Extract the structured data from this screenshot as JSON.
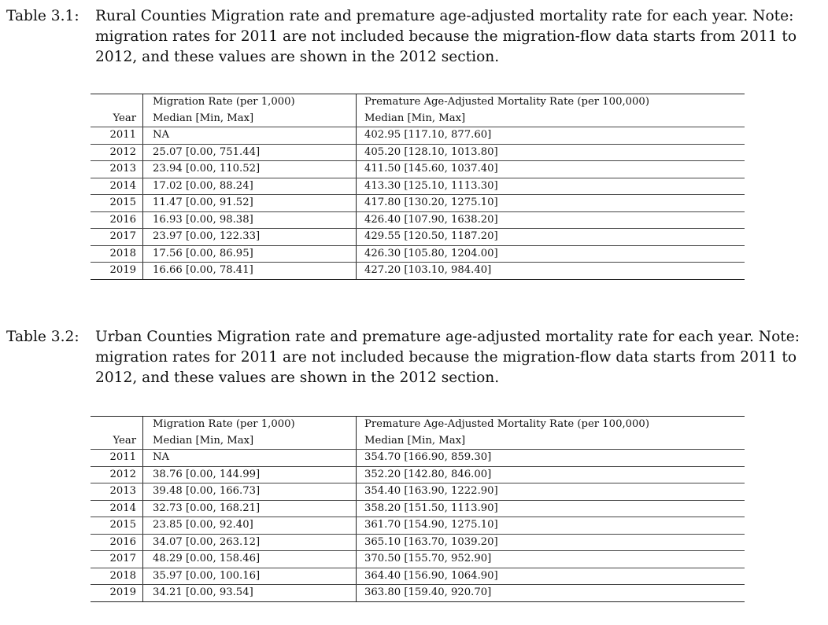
{
  "table1": {
    "caption_label": "Table 3.1:",
    "caption_text": "Rural Counties Migration rate and premature age-adjusted mortality rate for each year. Note: migration rates for 2011 are not included because the migration-flow data starts from 2011 to 2012, and these values are shown in the 2012 section.",
    "header_top": [
      "",
      "Migration Rate (per 1,000)",
      "Premature Age-Adjusted Mortality Rate (per 100,000)"
    ],
    "header_sub": [
      "Year",
      "Median [Min, Max]",
      "Median [Min, Max]"
    ],
    "rows": [
      [
        "2011",
        "NA",
        "402.95 [117.10, 877.60]"
      ],
      [
        "2012",
        "25.07 [0.00, 751.44]",
        "405.20 [128.10, 1013.80]"
      ],
      [
        "2013",
        "23.94 [0.00, 110.52]",
        "411.50 [145.60, 1037.40]"
      ],
      [
        "2014",
        "17.02 [0.00, 88.24]",
        "413.30 [125.10, 1113.30]"
      ],
      [
        "2015",
        "11.47 [0.00, 91.52]",
        "417.80 [130.20, 1275.10]"
      ],
      [
        "2016",
        "16.93 [0.00, 98.38]",
        "426.40 [107.90, 1638.20]"
      ],
      [
        "2017",
        "23.97 [0.00, 122.33]",
        "429.55 [120.50, 1187.20]"
      ],
      [
        "2018",
        "17.56 [0.00, 86.95]",
        "426.30 [105.80, 1204.00]"
      ],
      [
        "2019",
        "16.66 [0.00, 78.41]",
        "427.20 [103.10, 984.40]"
      ]
    ]
  },
  "table2": {
    "caption_label": "Table 3.2:",
    "caption_text": "Urban Counties Migration rate and premature age-adjusted mortality rate for each year. Note: migration rates for 2011 are not included because the migration-flow data starts from 2011 to 2012, and these values are shown in the 2012 section.",
    "header_top": [
      "",
      "Migration Rate (per 1,000)",
      "Premature Age-Adjusted Mortality Rate (per 100,000)"
    ],
    "header_sub": [
      "Year",
      "Median [Min, Max]",
      "Median [Min, Max]"
    ],
    "rows": [
      [
        "2011",
        "NA",
        "354.70 [166.90, 859.30]"
      ],
      [
        "2012",
        "38.76 [0.00, 144.99]",
        "352.20 [142.80, 846.00]"
      ],
      [
        "2013",
        "39.48 [0.00, 166.73]",
        "354.40 [163.90, 1222.90]"
      ],
      [
        "2014",
        "32.73 [0.00, 168.21]",
        "358.20 [151.50, 1113.90]"
      ],
      [
        "2015",
        "23.85 [0.00, 92.40]",
        "361.70 [154.90, 1275.10]"
      ],
      [
        "2016",
        "34.07 [0.00, 263.12]",
        "365.10 [163.70, 1039.20]"
      ],
      [
        "2017",
        "48.29 [0.00, 158.46]",
        "370.50 [155.70, 952.90]"
      ],
      [
        "2018",
        "35.97 [0.00, 100.16]",
        "364.40 [156.90, 1064.90]"
      ],
      [
        "2019",
        "34.21 [0.00, 93.54]",
        "363.80 [159.40, 920.70]"
      ]
    ]
  }
}
